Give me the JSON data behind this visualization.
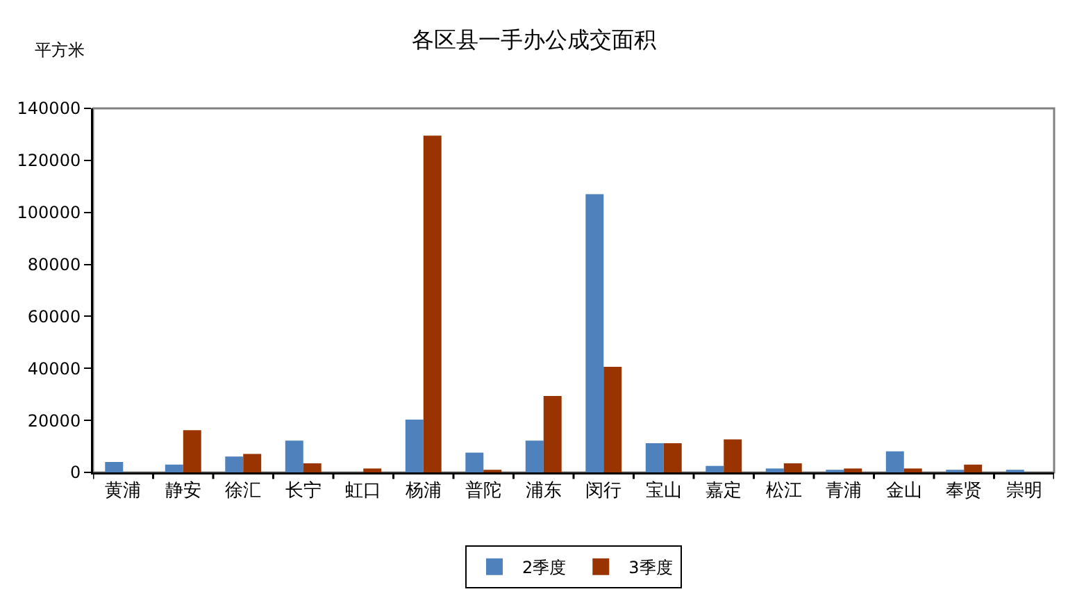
{
  "chart_data": {
    "type": "bar",
    "title": "各区县一手办公成交面积",
    "ylabel": "平方米",
    "categories": [
      "黄浦",
      "静安",
      "徐汇",
      "长宁",
      "虹口",
      "杨浦",
      "普陀",
      "浦东",
      "闵行",
      "宝山",
      "嘉定",
      "松江",
      "青浦",
      "金山",
      "奉贤",
      "崇明"
    ],
    "series": [
      {
        "name": "2季度",
        "color": "#4f81bd",
        "values": [
          4000,
          3000,
          6100,
          12200,
          null,
          20300,
          7600,
          12200,
          107000,
          11200,
          2500,
          1500,
          1000,
          8100,
          1000,
          1000
        ]
      },
      {
        "name": "3季度",
        "color": "#993300",
        "values": [
          null,
          16200,
          7100,
          3500,
          1500,
          129500,
          1000,
          29400,
          40600,
          11200,
          12700,
          3500,
          1500,
          1500,
          3000,
          null
        ]
      }
    ],
    "ylim": [
      0,
      140000
    ],
    "yticks": [
      0,
      20000,
      40000,
      60000,
      80000,
      100000,
      120000,
      140000
    ],
    "legend": "bottom"
  }
}
